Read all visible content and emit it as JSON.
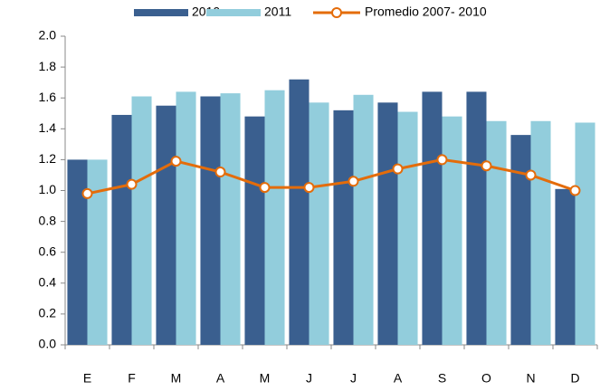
{
  "chart_data": {
    "type": "bar",
    "categories": [
      "E",
      "F",
      "M",
      "A",
      "M",
      "J",
      "J",
      "A",
      "S",
      "O",
      "N",
      "D"
    ],
    "series": [
      {
        "name": "2010",
        "color": "#3a5f8f",
        "values": [
          1.2,
          1.49,
          1.55,
          1.61,
          1.48,
          1.72,
          1.52,
          1.57,
          1.64,
          1.64,
          1.36,
          1.01
        ]
      },
      {
        "name": "2011",
        "color": "#92cddc",
        "values": [
          1.2,
          1.61,
          1.64,
          1.63,
          1.65,
          1.57,
          1.62,
          1.51,
          1.48,
          1.45,
          1.45,
          1.44
        ]
      },
      {
        "name": "Promedio 2007- 2010",
        "type": "line",
        "color": "#e46c0a",
        "values": [
          0.98,
          1.04,
          1.19,
          1.12,
          1.02,
          1.02,
          1.06,
          1.14,
          1.2,
          1.16,
          1.1,
          1.0
        ]
      }
    ],
    "ylim": [
      0,
      2
    ],
    "yticks": [
      {
        "value": 0,
        "label": "0.0"
      },
      0.2,
      0.4,
      0.6,
      0.8,
      {
        "value": 1,
        "label": "1.0"
      },
      1.2,
      1.4,
      1.6,
      1.8,
      {
        "value": 2,
        "label": "2.0"
      }
    ],
    "grid": false,
    "legend": "top"
  }
}
